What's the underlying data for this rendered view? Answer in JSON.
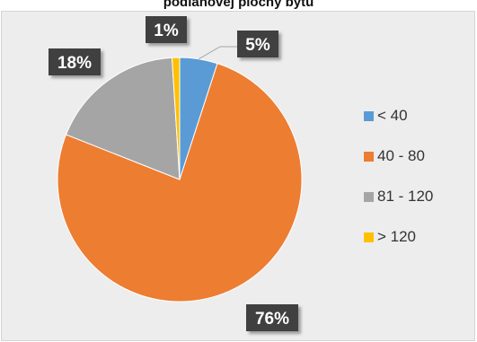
{
  "chart_data": {
    "type": "pie",
    "title": "podlahovej plochy bytu",
    "categories": [
      "< 40",
      "40 - 80",
      "81 - 120",
      "> 120"
    ],
    "values": [
      5,
      76,
      18,
      1
    ],
    "labels": [
      "5%",
      "76%",
      "18%",
      "1%"
    ],
    "colors": [
      "#5b9bd5",
      "#ed7d31",
      "#a5a5a5",
      "#ffc000"
    ],
    "legend_position": "right"
  }
}
